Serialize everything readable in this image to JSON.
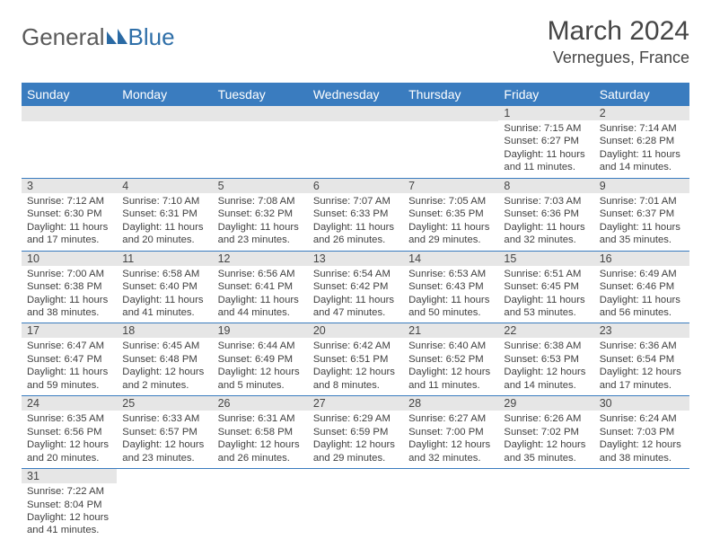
{
  "logo": {
    "part1": "General",
    "part2": "Blue"
  },
  "title": "March 2024",
  "location": "Vernegues, France",
  "colors": {
    "header_bar": "#3a7cbf",
    "row_divider": "#3a7cbf",
    "daynum_bg": "#e6e6e6",
    "text": "#404040",
    "title_text": "#454545",
    "logo_gray": "#5a5a5a",
    "logo_blue": "#2f6fa8",
    "sail": "#2a6aa4"
  },
  "fonts": {
    "month_title_pt": 30,
    "location_pt": 18,
    "weekday_pt": 14,
    "daynum_pt": 12.5,
    "body_pt": 11.3
  },
  "weekdays": [
    "Sunday",
    "Monday",
    "Tuesday",
    "Wednesday",
    "Thursday",
    "Friday",
    "Saturday"
  ],
  "weeks": [
    [
      {
        "n": "",
        "lines": []
      },
      {
        "n": "",
        "lines": []
      },
      {
        "n": "",
        "lines": []
      },
      {
        "n": "",
        "lines": []
      },
      {
        "n": "",
        "lines": []
      },
      {
        "n": "1",
        "lines": [
          "Sunrise: 7:15 AM",
          "Sunset: 6:27 PM",
          "Daylight: 11 hours",
          "and 11 minutes."
        ]
      },
      {
        "n": "2",
        "lines": [
          "Sunrise: 7:14 AM",
          "Sunset: 6:28 PM",
          "Daylight: 11 hours",
          "and 14 minutes."
        ]
      }
    ],
    [
      {
        "n": "3",
        "lines": [
          "Sunrise: 7:12 AM",
          "Sunset: 6:30 PM",
          "Daylight: 11 hours",
          "and 17 minutes."
        ]
      },
      {
        "n": "4",
        "lines": [
          "Sunrise: 7:10 AM",
          "Sunset: 6:31 PM",
          "Daylight: 11 hours",
          "and 20 minutes."
        ]
      },
      {
        "n": "5",
        "lines": [
          "Sunrise: 7:08 AM",
          "Sunset: 6:32 PM",
          "Daylight: 11 hours",
          "and 23 minutes."
        ]
      },
      {
        "n": "6",
        "lines": [
          "Sunrise: 7:07 AM",
          "Sunset: 6:33 PM",
          "Daylight: 11 hours",
          "and 26 minutes."
        ]
      },
      {
        "n": "7",
        "lines": [
          "Sunrise: 7:05 AM",
          "Sunset: 6:35 PM",
          "Daylight: 11 hours",
          "and 29 minutes."
        ]
      },
      {
        "n": "8",
        "lines": [
          "Sunrise: 7:03 AM",
          "Sunset: 6:36 PM",
          "Daylight: 11 hours",
          "and 32 minutes."
        ]
      },
      {
        "n": "9",
        "lines": [
          "Sunrise: 7:01 AM",
          "Sunset: 6:37 PM",
          "Daylight: 11 hours",
          "and 35 minutes."
        ]
      }
    ],
    [
      {
        "n": "10",
        "lines": [
          "Sunrise: 7:00 AM",
          "Sunset: 6:38 PM",
          "Daylight: 11 hours",
          "and 38 minutes."
        ]
      },
      {
        "n": "11",
        "lines": [
          "Sunrise: 6:58 AM",
          "Sunset: 6:40 PM",
          "Daylight: 11 hours",
          "and 41 minutes."
        ]
      },
      {
        "n": "12",
        "lines": [
          "Sunrise: 6:56 AM",
          "Sunset: 6:41 PM",
          "Daylight: 11 hours",
          "and 44 minutes."
        ]
      },
      {
        "n": "13",
        "lines": [
          "Sunrise: 6:54 AM",
          "Sunset: 6:42 PM",
          "Daylight: 11 hours",
          "and 47 minutes."
        ]
      },
      {
        "n": "14",
        "lines": [
          "Sunrise: 6:53 AM",
          "Sunset: 6:43 PM",
          "Daylight: 11 hours",
          "and 50 minutes."
        ]
      },
      {
        "n": "15",
        "lines": [
          "Sunrise: 6:51 AM",
          "Sunset: 6:45 PM",
          "Daylight: 11 hours",
          "and 53 minutes."
        ]
      },
      {
        "n": "16",
        "lines": [
          "Sunrise: 6:49 AM",
          "Sunset: 6:46 PM",
          "Daylight: 11 hours",
          "and 56 minutes."
        ]
      }
    ],
    [
      {
        "n": "17",
        "lines": [
          "Sunrise: 6:47 AM",
          "Sunset: 6:47 PM",
          "Daylight: 11 hours",
          "and 59 minutes."
        ]
      },
      {
        "n": "18",
        "lines": [
          "Sunrise: 6:45 AM",
          "Sunset: 6:48 PM",
          "Daylight: 12 hours",
          "and 2 minutes."
        ]
      },
      {
        "n": "19",
        "lines": [
          "Sunrise: 6:44 AM",
          "Sunset: 6:49 PM",
          "Daylight: 12 hours",
          "and 5 minutes."
        ]
      },
      {
        "n": "20",
        "lines": [
          "Sunrise: 6:42 AM",
          "Sunset: 6:51 PM",
          "Daylight: 12 hours",
          "and 8 minutes."
        ]
      },
      {
        "n": "21",
        "lines": [
          "Sunrise: 6:40 AM",
          "Sunset: 6:52 PM",
          "Daylight: 12 hours",
          "and 11 minutes."
        ]
      },
      {
        "n": "22",
        "lines": [
          "Sunrise: 6:38 AM",
          "Sunset: 6:53 PM",
          "Daylight: 12 hours",
          "and 14 minutes."
        ]
      },
      {
        "n": "23",
        "lines": [
          "Sunrise: 6:36 AM",
          "Sunset: 6:54 PM",
          "Daylight: 12 hours",
          "and 17 minutes."
        ]
      }
    ],
    [
      {
        "n": "24",
        "lines": [
          "Sunrise: 6:35 AM",
          "Sunset: 6:56 PM",
          "Daylight: 12 hours",
          "and 20 minutes."
        ]
      },
      {
        "n": "25",
        "lines": [
          "Sunrise: 6:33 AM",
          "Sunset: 6:57 PM",
          "Daylight: 12 hours",
          "and 23 minutes."
        ]
      },
      {
        "n": "26",
        "lines": [
          "Sunrise: 6:31 AM",
          "Sunset: 6:58 PM",
          "Daylight: 12 hours",
          "and 26 minutes."
        ]
      },
      {
        "n": "27",
        "lines": [
          "Sunrise: 6:29 AM",
          "Sunset: 6:59 PM",
          "Daylight: 12 hours",
          "and 29 minutes."
        ]
      },
      {
        "n": "28",
        "lines": [
          "Sunrise: 6:27 AM",
          "Sunset: 7:00 PM",
          "Daylight: 12 hours",
          "and 32 minutes."
        ]
      },
      {
        "n": "29",
        "lines": [
          "Sunrise: 6:26 AM",
          "Sunset: 7:02 PM",
          "Daylight: 12 hours",
          "and 35 minutes."
        ]
      },
      {
        "n": "30",
        "lines": [
          "Sunrise: 6:24 AM",
          "Sunset: 7:03 PM",
          "Daylight: 12 hours",
          "and 38 minutes."
        ]
      }
    ],
    [
      {
        "n": "31",
        "lines": [
          "Sunrise: 7:22 AM",
          "Sunset: 8:04 PM",
          "Daylight: 12 hours",
          "and 41 minutes."
        ]
      },
      {
        "n": "",
        "lines": []
      },
      {
        "n": "",
        "lines": []
      },
      {
        "n": "",
        "lines": []
      },
      {
        "n": "",
        "lines": []
      },
      {
        "n": "",
        "lines": []
      },
      {
        "n": "",
        "lines": []
      }
    ]
  ]
}
